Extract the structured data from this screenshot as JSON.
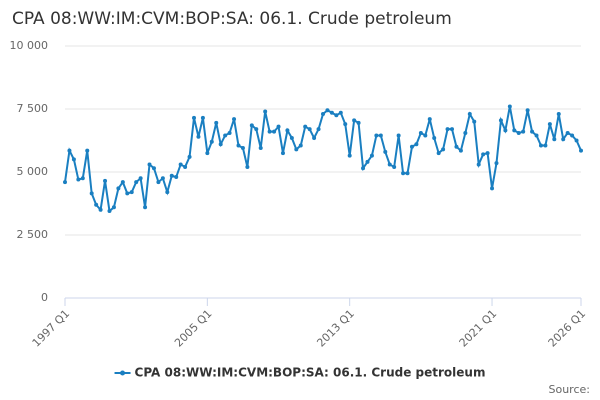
{
  "chart_data": {
    "type": "line",
    "title": "CPA 08:WW:IM:CVM:BOP:SA: 06.1. Crude petroleum",
    "source_label": "Source:",
    "categories": [
      "1997 Q1",
      null,
      null,
      null,
      null,
      null,
      null,
      null,
      null,
      null,
      null,
      null,
      null,
      null,
      null,
      null,
      null,
      null,
      null,
      null,
      null,
      null,
      null,
      null,
      null,
      null,
      null,
      null,
      null,
      null,
      null,
      null,
      "2005 Q1",
      null,
      null,
      null,
      null,
      null,
      null,
      null,
      null,
      null,
      null,
      null,
      null,
      null,
      null,
      null,
      null,
      null,
      null,
      null,
      null,
      null,
      null,
      null,
      null,
      null,
      null,
      null,
      null,
      null,
      null,
      null,
      "2013 Q1",
      null,
      null,
      null,
      null,
      null,
      null,
      null,
      null,
      null,
      null,
      null,
      null,
      null,
      null,
      null,
      null,
      null,
      null,
      null,
      null,
      null,
      null,
      null,
      null,
      null,
      null,
      null,
      null,
      null,
      null,
      null,
      "2021 Q1",
      null,
      null,
      null,
      null,
      null,
      null,
      null,
      null,
      null,
      null,
      null,
      null,
      null,
      null,
      null,
      null,
      null,
      null,
      null,
      "2026 Q1"
    ],
    "series": [
      {
        "name": "CPA 08:WW:IM:CVM:BOP:SA: 06.1. Crude petroleum",
        "color": "#1a7fc1",
        "values": [
          4600,
          5850,
          5500,
          4700,
          4750,
          5850,
          4150,
          3700,
          3500,
          4650,
          3450,
          3600,
          4350,
          4600,
          4150,
          4200,
          4600,
          4750,
          3600,
          5300,
          5150,
          4600,
          4750,
          4200,
          4850,
          4800,
          5300,
          5200,
          5600,
          7150,
          6400,
          7150,
          5750,
          6200,
          6950,
          6100,
          6450,
          6550,
          7100,
          6050,
          5950,
          5200,
          6850,
          6700,
          5950,
          7400,
          6600,
          6600,
          6800,
          5750,
          6650,
          6350,
          5900,
          6050,
          6800,
          6700,
          6350,
          6700,
          7300,
          7450,
          7350,
          7250,
          7350,
          6900,
          5650,
          7050,
          6950,
          5150,
          5400,
          5650,
          6450,
          6450,
          5800,
          5300,
          5200,
          6450,
          4950,
          4950,
          6000,
          6100,
          6550,
          6450,
          7100,
          6350,
          5750,
          5900,
          6700,
          6700,
          6000,
          5850,
          6550,
          7300,
          7000,
          5300,
          5700,
          5750,
          4350,
          5350,
          7050,
          6650,
          7600,
          6650,
          6550,
          6600,
          7450,
          6600,
          6450,
          6050,
          6050,
          6900,
          6300,
          7300,
          6300,
          6550,
          6450,
          6250,
          5850
        ]
      }
    ],
    "ylim": [
      0,
      10000
    ],
    "yticks": [
      0,
      {
        "value": 2500,
        "label": "2 500"
      },
      {
        "value": 5000,
        "label": "5 000"
      },
      {
        "value": 7500,
        "label": "7 500"
      },
      {
        "value": 10000,
        "label": "10 000"
      }
    ],
    "grid": true
  }
}
